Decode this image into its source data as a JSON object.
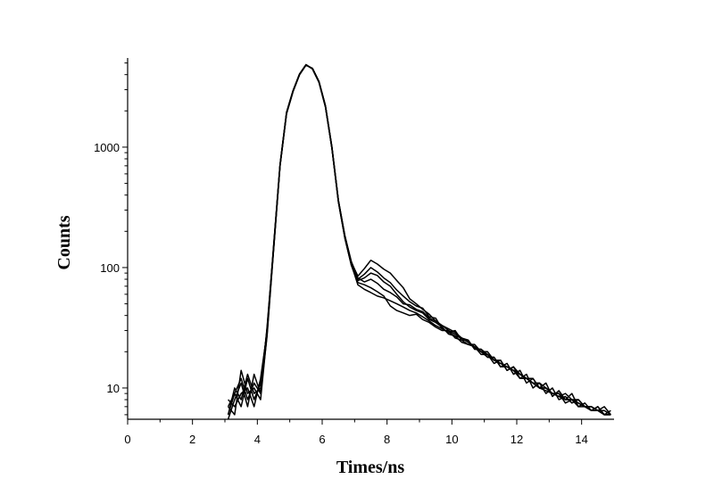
{
  "chart_data": {
    "type": "line",
    "title": "",
    "xlabel": "Times/ns",
    "ylabel": "Counts",
    "xlim": [
      0,
      15
    ],
    "ylim": [
      5.5,
      5500
    ],
    "yscale": "log",
    "grid": false,
    "legend": "none",
    "line_color": "#000000",
    "x_ticks": [
      0,
      2,
      4,
      6,
      8,
      10,
      12,
      14
    ],
    "x_tick_labels": [
      "0",
      "2",
      "4",
      "6",
      "8",
      "10",
      "12",
      "14"
    ],
    "y_ticks": [
      10,
      100,
      1000
    ],
    "y_tick_labels": [
      "10",
      "100",
      "1000"
    ],
    "series": [
      {
        "x": [
          3.1,
          3.3,
          3.5,
          3.7,
          3.9,
          4.1,
          4.3,
          4.5,
          4.7,
          4.9,
          5.1,
          5.3,
          5.5,
          5.7,
          5.9,
          6.1,
          6.3,
          6.5,
          6.7,
          6.9,
          7.1,
          7.3,
          7.5,
          7.7,
          7.9,
          8.1,
          8.3,
          8.5,
          8.7,
          8.9,
          9.1,
          9.3,
          9.5,
          9.7,
          9.9,
          10.1,
          10.3,
          10.5,
          10.7,
          10.9,
          11.1,
          11.3,
          11.5,
          11.7,
          11.9,
          12.1,
          12.3,
          12.5,
          12.7,
          12.9,
          13.1,
          13.3,
          13.5,
          13.7,
          13.9,
          14.1,
          14.3,
          14.5,
          14.7,
          14.9
        ],
        "values": [
          6,
          9,
          7,
          12,
          8,
          11,
          30,
          140,
          700,
          1900,
          2900,
          4000,
          4800,
          4500,
          3500,
          2200,
          1000,
          360,
          185,
          110,
          85,
          98,
          115,
          107,
          97,
          90,
          78,
          68,
          55,
          50,
          45,
          41,
          36,
          33,
          30,
          28,
          26,
          24,
          22,
          20,
          19,
          17,
          16,
          15,
          14,
          13,
          12,
          11,
          11,
          10,
          9,
          8.5,
          9,
          8,
          8,
          7,
          7,
          6.5,
          7,
          6
        ]
      },
      {
        "x": [
          3.1,
          3.3,
          3.5,
          3.7,
          3.9,
          4.1,
          4.3,
          4.5,
          4.7,
          4.9,
          5.1,
          5.3,
          5.5,
          5.7,
          5.9,
          6.1,
          6.3,
          6.5,
          6.7,
          6.9,
          7.1,
          7.3,
          7.5,
          7.7,
          7.9,
          8.1,
          8.3,
          8.5,
          8.7,
          8.9,
          9.1,
          9.3,
          9.5,
          9.7,
          9.9,
          10.1,
          10.3,
          10.5,
          10.7,
          10.9,
          11.1,
          11.3,
          11.5,
          11.7,
          11.9,
          12.1,
          12.3,
          12.5,
          12.7,
          12.9,
          13.1,
          13.3,
          13.5,
          13.7,
          13.9,
          14.1,
          14.3,
          14.5,
          14.7,
          14.9
        ],
        "values": [
          7,
          6,
          14,
          9,
          10,
          8,
          28,
          150,
          720,
          1950,
          2950,
          4050,
          4850,
          4450,
          3450,
          2150,
          980,
          350,
          175,
          105,
          80,
          88,
          100,
          92,
          82,
          75,
          65,
          58,
          52,
          48,
          46,
          39,
          38,
          31,
          29,
          30,
          25,
          25,
          21,
          21,
          18,
          18,
          15,
          16,
          13,
          14,
          11,
          12,
          10,
          11,
          8.5,
          9.5,
          8,
          9,
          7,
          7.5,
          6.5,
          7,
          6,
          6.5
        ]
      },
      {
        "x": [
          3.1,
          3.3,
          3.5,
          3.7,
          3.9,
          4.1,
          4.3,
          4.5,
          4.7,
          4.9,
          5.1,
          5.3,
          5.5,
          5.7,
          5.9,
          6.1,
          6.3,
          6.5,
          6.7,
          6.9,
          7.1,
          7.3,
          7.5,
          7.7,
          7.9,
          8.1,
          8.3,
          8.5,
          8.7,
          8.9,
          9.1,
          9.3,
          9.5,
          9.7,
          9.9,
          10.1,
          10.3,
          10.5,
          10.7,
          10.9,
          11.1,
          11.3,
          11.5,
          11.7,
          11.9,
          12.1,
          12.3,
          12.5,
          12.7,
          12.9,
          13.1,
          13.3,
          13.5,
          13.7,
          13.9,
          14.1,
          14.3,
          14.5,
          14.7,
          14.9
        ],
        "values": [
          5,
          8,
          11,
          7,
          13,
          9,
          32,
          145,
          710,
          1900,
          2900,
          4000,
          4800,
          4500,
          3500,
          2200,
          990,
          355,
          180,
          108,
          78,
          82,
          90,
          86,
          76,
          70,
          60,
          52,
          47,
          44,
          42,
          37,
          35,
          32,
          28,
          27,
          24,
          23,
          22,
          19,
          19,
          16,
          17,
          14,
          15,
          12,
          13,
          10,
          11,
          9,
          10,
          8,
          8.5,
          7.5,
          8,
          7,
          6.5,
          7,
          6,
          6
        ]
      },
      {
        "x": [
          3.1,
          3.3,
          3.5,
          3.7,
          3.9,
          4.1,
          4.3,
          4.5,
          4.7,
          4.9,
          5.1,
          5.3,
          5.5,
          5.7,
          5.9,
          6.1,
          6.3,
          6.5,
          6.7,
          6.9,
          7.1,
          7.3,
          7.5,
          7.7,
          7.9,
          8.1,
          8.3,
          8.5,
          8.7,
          8.9,
          9.1,
          9.3,
          9.5,
          9.7,
          9.9,
          10.1,
          10.3,
          10.5,
          10.7,
          10.9,
          11.1,
          11.3,
          11.5,
          11.7,
          11.9,
          12.1,
          12.3,
          12.5,
          12.7,
          12.9,
          13.1,
          13.3,
          13.5,
          13.7,
          13.9,
          14.1,
          14.3,
          14.5,
          14.7,
          14.9
        ],
        "values": [
          8,
          7,
          9,
          10,
          7,
          12,
          29,
          142,
          705,
          1920,
          2920,
          4020,
          4820,
          4480,
          3480,
          2180,
          985,
          358,
          178,
          106,
          72,
          66,
          62,
          58,
          56,
          53,
          50,
          47,
          44,
          42,
          39,
          36,
          33,
          31,
          29,
          27,
          26,
          24,
          22,
          20,
          20,
          17,
          16,
          15,
          14,
          13,
          12,
          11,
          10,
          10,
          9,
          8.5,
          8,
          8,
          7.5,
          7,
          7,
          6.5,
          6,
          6
        ]
      },
      {
        "x": [
          3.1,
          3.3,
          3.5,
          3.7,
          3.9,
          4.1,
          4.3,
          4.5,
          4.7,
          4.9,
          5.1,
          5.3,
          5.5,
          5.7,
          5.9,
          6.1,
          6.3,
          6.5,
          6.7,
          6.9,
          7.1,
          7.3,
          7.5,
          7.7,
          7.9,
          8.1,
          8.3,
          8.5,
          8.7,
          8.9,
          9.1,
          9.3,
          9.5,
          9.7,
          9.9,
          10.1,
          10.3,
          10.5,
          10.7,
          10.9,
          11.1,
          11.3,
          11.5,
          11.7,
          11.9,
          12.1,
          12.3,
          12.5,
          12.7,
          12.9,
          13.1,
          13.3,
          13.5,
          13.7,
          13.9,
          14.1,
          14.3,
          14.5,
          14.7,
          14.9
        ],
        "values": [
          6,
          10,
          8,
          13,
          9,
          10,
          31,
          148,
          715,
          1930,
          2930,
          4030,
          4830,
          4470,
          3470,
          2170,
          975,
          352,
          176,
          104,
          75,
          72,
          68,
          63,
          58,
          48,
          44,
          42,
          40,
          41,
          37,
          35,
          32,
          30,
          30,
          26,
          25,
          23,
          23,
          20,
          18,
          18,
          15,
          15,
          14,
          12,
          12,
          11,
          10,
          9.5,
          9,
          9,
          7.5,
          8,
          7,
          7,
          6.5,
          6.5,
          6,
          6
        ]
      },
      {
        "x": [
          3.1,
          3.3,
          3.5,
          3.7,
          3.9,
          4.1,
          4.3,
          4.5,
          4.7,
          4.9,
          5.1,
          5.3,
          5.5,
          5.7,
          5.9,
          6.1,
          6.3,
          6.5,
          6.7,
          6.9,
          7.1,
          7.3,
          7.5,
          7.7,
          7.9,
          8.1,
          8.3,
          8.5,
          8.7,
          8.9,
          9.1,
          9.3,
          9.5,
          9.7,
          9.9,
          10.1,
          10.3,
          10.5,
          10.7,
          10.9,
          11.1,
          11.3,
          11.5,
          11.7,
          11.9,
          12.1,
          12.3,
          12.5,
          12.7,
          12.9,
          13.1,
          13.3,
          13.5,
          13.7,
          13.9,
          14.1,
          14.3,
          14.5,
          14.7,
          14.9
        ],
        "values": [
          7,
          9,
          12,
          8,
          11,
          9,
          27,
          138,
          695,
          1890,
          2890,
          3990,
          4790,
          4520,
          3520,
          2210,
          1005,
          362,
          182,
          112,
          82,
          76,
          80,
          74,
          66,
          62,
          57,
          50,
          49,
          45,
          43,
          38,
          36,
          33,
          31,
          29,
          26,
          25,
          21,
          21,
          19,
          17,
          17,
          14,
          15,
          13,
          12,
          12,
          10,
          10,
          9,
          9,
          8,
          8,
          7.5,
          7,
          7,
          6.5,
          6.5,
          6
        ]
      }
    ]
  }
}
